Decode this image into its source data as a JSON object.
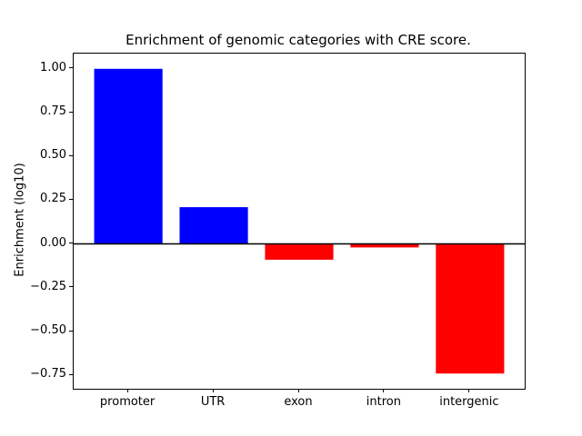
{
  "chart_data": {
    "type": "bar",
    "title": "Enrichment of genomic categories with CRE score.",
    "xlabel": "",
    "ylabel": "Enrichment (log10)",
    "categories": [
      "promoter",
      "UTR",
      "exon",
      "intron",
      "intergenic"
    ],
    "values": [
      1.0,
      0.21,
      -0.09,
      -0.02,
      -0.74
    ],
    "colors": [
      "#0000ff",
      "#0000ff",
      "#ff0000",
      "#ff0000",
      "#ff0000"
    ],
    "positive_color": "#0000ff",
    "negative_color": "#ff0000",
    "bar_width": 0.8,
    "xlim": [
      -0.64,
      4.64
    ],
    "ylim": [
      -0.827,
      1.087
    ],
    "yticks": [
      1.0,
      0.75,
      0.5,
      0.25,
      0.0,
      -0.25,
      -0.5,
      -0.75
    ],
    "ytick_labels": [
      "1.00",
      "0.75",
      "0.50",
      "0.25",
      "0.00",
      "−0.25",
      "−0.50",
      "−0.75"
    ],
    "zero_line": true,
    "grid": false,
    "legend": null
  }
}
